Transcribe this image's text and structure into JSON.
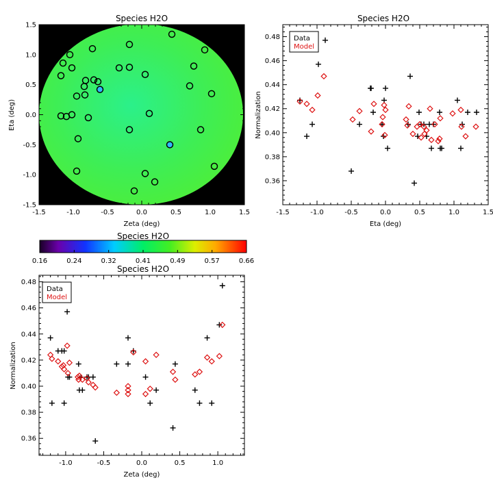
{
  "chart_data": [
    {
      "panel": "map",
      "type": "heatmap",
      "title": "Species H2O",
      "xlabel": "Zeta (deg)",
      "ylabel": "Eta (deg)",
      "xlim": [
        -1.5,
        1.5
      ],
      "ylim": [
        -1.5,
        1.5
      ],
      "xticks": [
        "-1.5",
        "-1.0",
        "-0.5",
        "0.0",
        "0.5",
        "1.0",
        "1.5"
      ],
      "yticks": [
        "-1.5",
        "-1.0",
        "-0.5",
        "0.0",
        "0.5",
        "1.0",
        "1.5"
      ],
      "field_shape": "disk",
      "field_color": "#44ee44",
      "background_color": "#000000",
      "points": [
        [
          -1.18,
          0.65
        ],
        [
          -1.05,
          1.0
        ],
        [
          -1.02,
          0.78
        ],
        [
          -1.15,
          0.86
        ],
        [
          -0.72,
          1.1
        ],
        [
          -0.82,
          0.57
        ],
        [
          -0.7,
          0.58
        ],
        [
          -0.64,
          0.55
        ],
        [
          -0.84,
          0.47
        ],
        [
          -0.95,
          0.31
        ],
        [
          -0.83,
          0.33
        ],
        [
          -1.02,
          0.0
        ],
        [
          -0.78,
          -0.05
        ],
        [
          -1.18,
          -0.02
        ],
        [
          -1.1,
          -0.03
        ],
        [
          -0.93,
          -0.4
        ],
        [
          -0.95,
          -0.94
        ],
        [
          -0.33,
          0.78
        ],
        [
          -0.18,
          0.79
        ],
        [
          -0.18,
          1.17
        ],
        [
          0.05,
          0.67
        ],
        [
          0.11,
          0.02
        ],
        [
          0.44,
          1.34
        ],
        [
          0.7,
          0.48
        ],
        [
          0.76,
          0.81
        ],
        [
          0.92,
          1.08
        ],
        [
          1.02,
          0.35
        ],
        [
          0.86,
          -0.25
        ],
        [
          1.06,
          -0.86
        ],
        [
          -0.18,
          -0.25
        ],
        [
          0.19,
          -1.12
        ],
        [
          0.05,
          -0.98
        ],
        [
          -0.11,
          -1.27
        ]
      ],
      "highlighted_points": [
        [
          -0.61,
          0.42
        ],
        [
          0.41,
          -0.5
        ]
      ],
      "highlight_color": "#2fb8ff"
    },
    {
      "panel": "colorbar",
      "type": "colorbar",
      "title": "Species H2O",
      "range": [
        0.16,
        0.66
      ],
      "tick_labels": [
        "0.16",
        "0.24",
        "0.32",
        "0.41",
        "0.49",
        "0.57",
        "0.66"
      ]
    },
    {
      "panel": "eta",
      "type": "scatter",
      "title": "Species H2O",
      "xlabel": "Eta (deg)",
      "ylabel": "Normalization",
      "xlim": [
        -1.5,
        1.5
      ],
      "ylim": [
        0.34,
        0.49
      ],
      "xticks": [
        "-1.5",
        "-1.0",
        "-0.5",
        "0.0",
        "0.5",
        "1.0",
        "1.5"
      ],
      "yticks": [
        "0.36",
        "0.38",
        "0.40",
        "0.42",
        "0.44",
        "0.46",
        "0.48"
      ],
      "legend": {
        "entries": [
          "Data",
          "Model"
        ],
        "placement": "top-left"
      },
      "series": [
        {
          "name": "Data",
          "marker": "plus",
          "color": "#000000",
          "points": [
            [
              -1.25,
              0.427
            ],
            [
              -1.15,
              0.397
            ],
            [
              -1.07,
              0.407
            ],
            [
              -0.98,
              0.457
            ],
            [
              -0.88,
              0.477
            ],
            [
              -0.5,
              0.368
            ],
            [
              -0.38,
              0.407
            ],
            [
              -0.22,
              0.437
            ],
            [
              -0.21,
              0.437
            ],
            [
              -0.18,
              0.417
            ],
            [
              -0.05,
              0.407
            ],
            [
              -0.03,
              0.397
            ],
            [
              -0.02,
              0.427
            ],
            [
              0.0,
              0.437
            ],
            [
              0.03,
              0.387
            ],
            [
              0.33,
              0.407
            ],
            [
              0.36,
              0.447
            ],
            [
              0.42,
              0.358
            ],
            [
              0.47,
              0.397
            ],
            [
              0.49,
              0.417
            ],
            [
              0.52,
              0.407
            ],
            [
              0.56,
              0.407
            ],
            [
              0.6,
              0.397
            ],
            [
              0.64,
              0.407
            ],
            [
              0.67,
              0.387
            ],
            [
              0.7,
              0.407
            ],
            [
              0.79,
              0.417
            ],
            [
              0.8,
              0.387
            ],
            [
              0.82,
              0.387
            ],
            [
              1.05,
              0.427
            ],
            [
              1.1,
              0.387
            ],
            [
              1.12,
              0.407
            ],
            [
              1.2,
              0.417
            ],
            [
              1.33,
              0.417
            ]
          ]
        },
        {
          "name": "Model",
          "marker": "diamond",
          "color": "#dd1111",
          "points": [
            [
              -1.25,
              0.426
            ],
            [
              -1.15,
              0.424
            ],
            [
              -1.07,
              0.419
            ],
            [
              -0.99,
              0.431
            ],
            [
              -0.9,
              0.447
            ],
            [
              -0.48,
              0.411
            ],
            [
              -0.38,
              0.418
            ],
            [
              -0.21,
              0.401
            ],
            [
              -0.17,
              0.424
            ],
            [
              -0.05,
              0.407
            ],
            [
              -0.04,
              0.413
            ],
            [
              -0.02,
              0.423
            ],
            [
              -0.01,
              0.398
            ],
            [
              0.0,
              0.419
            ],
            [
              0.3,
              0.411
            ],
            [
              0.32,
              0.406
            ],
            [
              0.34,
              0.422
            ],
            [
              0.4,
              0.399
            ],
            [
              0.46,
              0.405
            ],
            [
              0.5,
              0.407
            ],
            [
              0.52,
              0.396
            ],
            [
              0.56,
              0.405
            ],
            [
              0.57,
              0.399
            ],
            [
              0.6,
              0.402
            ],
            [
              0.65,
              0.42
            ],
            [
              0.67,
              0.394
            ],
            [
              0.72,
              0.407
            ],
            [
              0.77,
              0.393
            ],
            [
              0.79,
              0.395
            ],
            [
              0.8,
              0.412
            ],
            [
              0.98,
              0.416
            ],
            [
              1.1,
              0.419
            ],
            [
              1.11,
              0.405
            ],
            [
              1.17,
              0.397
            ],
            [
              1.32,
              0.405
            ]
          ]
        }
      ]
    },
    {
      "panel": "zeta",
      "type": "scatter",
      "title": "Species H2O",
      "xlabel": "Zeta (deg)",
      "ylabel": "Normalization",
      "xlim": [
        -1.35,
        1.35
      ],
      "ylim": [
        0.347,
        0.485
      ],
      "xticks": [
        "-1.0",
        "-0.5",
        "0.0",
        "0.5",
        "1.0"
      ],
      "xtick_values": [
        -1.0,
        -0.5,
        0.0,
        0.5,
        1.0
      ],
      "yticks": [
        "0.36",
        "0.38",
        "0.40",
        "0.42",
        "0.44",
        "0.46",
        "0.48"
      ],
      "legend": {
        "entries": [
          "Data",
          "Model"
        ],
        "placement": "top-left"
      },
      "series": [
        {
          "name": "Data",
          "marker": "plus",
          "color": "#000000",
          "points": [
            [
              -1.2,
              0.437
            ],
            [
              -1.18,
              0.387
            ],
            [
              -1.1,
              0.427
            ],
            [
              -1.05,
              0.427
            ],
            [
              -1.02,
              0.427
            ],
            [
              -1.02,
              0.387
            ],
            [
              -0.98,
              0.457
            ],
            [
              -0.97,
              0.407
            ],
            [
              -0.95,
              0.407
            ],
            [
              -0.83,
              0.417
            ],
            [
              -0.82,
              0.397
            ],
            [
              -0.78,
              0.397
            ],
            [
              -0.8,
              0.407
            ],
            [
              -0.72,
              0.407
            ],
            [
              -0.7,
              0.407
            ],
            [
              -0.64,
              0.407
            ],
            [
              -0.61,
              0.358
            ],
            [
              -0.33,
              0.417
            ],
            [
              -0.18,
              0.437
            ],
            [
              -0.18,
              0.417
            ],
            [
              -0.11,
              0.427
            ],
            [
              0.05,
              0.407
            ],
            [
              0.11,
              0.387
            ],
            [
              0.19,
              0.397
            ],
            [
              0.41,
              0.368
            ],
            [
              0.44,
              0.417
            ],
            [
              0.7,
              0.397
            ],
            [
              0.76,
              0.387
            ],
            [
              0.86,
              0.437
            ],
            [
              0.92,
              0.387
            ],
            [
              1.02,
              0.447
            ],
            [
              1.06,
              0.477
            ]
          ]
        },
        {
          "name": "Model",
          "marker": "diamond",
          "color": "#dd1111",
          "points": [
            [
              -1.2,
              0.424
            ],
            [
              -1.18,
              0.421
            ],
            [
              -1.1,
              0.419
            ],
            [
              -1.05,
              0.415
            ],
            [
              -1.03,
              0.416
            ],
            [
              -1.02,
              0.413
            ],
            [
              -0.98,
              0.431
            ],
            [
              -0.97,
              0.41
            ],
            [
              -0.95,
              0.418
            ],
            [
              -0.84,
              0.407
            ],
            [
              -0.83,
              0.405
            ],
            [
              -0.82,
              0.408
            ],
            [
              -0.78,
              0.405
            ],
            [
              -0.72,
              0.406
            ],
            [
              -0.7,
              0.403
            ],
            [
              -0.64,
              0.401
            ],
            [
              -0.61,
              0.399
            ],
            [
              -0.33,
              0.395
            ],
            [
              -0.18,
              0.4
            ],
            [
              -0.18,
              0.397
            ],
            [
              -0.18,
              0.394
            ],
            [
              -0.11,
              0.426
            ],
            [
              0.05,
              0.419
            ],
            [
              0.05,
              0.394
            ],
            [
              0.11,
              0.398
            ],
            [
              0.19,
              0.424
            ],
            [
              0.41,
              0.411
            ],
            [
              0.44,
              0.405
            ],
            [
              0.7,
              0.409
            ],
            [
              0.76,
              0.411
            ],
            [
              0.86,
              0.422
            ],
            [
              0.92,
              0.419
            ],
            [
              1.02,
              0.423
            ],
            [
              1.06,
              0.447
            ]
          ]
        }
      ]
    }
  ]
}
